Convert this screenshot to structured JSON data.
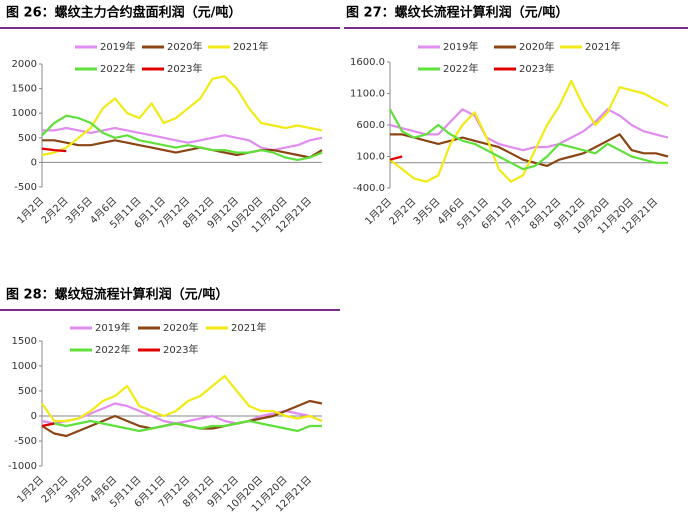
{
  "chart_data": [
    {
      "type": "line",
      "title": "图 26：螺纹主力合约盘面利润（元/吨）",
      "categories": [
        "1月2日",
        null,
        "2月2日",
        null,
        "3月5日",
        null,
        "4月6日",
        null,
        "5月11日",
        null,
        "6月11日",
        null,
        "7月12日",
        null,
        "8月12日",
        null,
        "9月12日",
        null,
        "10月20日",
        null,
        "11月20日",
        null,
        "12月21日",
        null
      ],
      "ylim": [
        -500,
        2000
      ],
      "yticks": [
        -500,
        0,
        500,
        1000,
        1500,
        2000
      ],
      "grid": false,
      "series": [
        {
          "name": "2019年",
          "color": "#e08cf0",
          "values": [
            650,
            650,
            700,
            650,
            600,
            650,
            700,
            650,
            600,
            550,
            500,
            450,
            400,
            450,
            500,
            550,
            500,
            450,
            300,
            250,
            300,
            350,
            450,
            500
          ]
        },
        {
          "name": "2020年",
          "color": "#8b4513",
          "values": [
            450,
            450,
            400,
            350,
            350,
            400,
            450,
            400,
            350,
            300,
            250,
            200,
            250,
            300,
            250,
            200,
            150,
            200,
            250,
            250,
            200,
            150,
            100,
            250
          ]
        },
        {
          "name": "2021年",
          "color": "#f2ea14",
          "values": [
            150,
            200,
            300,
            500,
            700,
            1100,
            1300,
            1000,
            900,
            1200,
            800,
            900,
            1100,
            1300,
            1700,
            1750,
            1500,
            1100,
            800,
            750,
            700,
            750,
            700,
            650
          ]
        },
        {
          "name": "2022年",
          "color": "#5fe03a",
          "values": [
            550,
            800,
            950,
            900,
            800,
            600,
            500,
            550,
            450,
            400,
            350,
            300,
            350,
            300,
            250,
            250,
            200,
            200,
            250,
            200,
            100,
            50,
            100,
            200
          ]
        },
        {
          "name": "2023年",
          "color": "#e00000",
          "values": [
            280,
            250,
            230,
            null,
            null,
            null,
            null,
            null,
            null,
            null,
            null,
            null,
            null,
            null,
            null,
            null,
            null,
            null,
            null,
            null,
            null,
            null,
            null,
            null
          ]
        }
      ]
    },
    {
      "type": "line",
      "title": "图 27：螺纹长流程计算利润（元/吨）",
      "categories": [
        "1月2日",
        null,
        "2月2日",
        null,
        "3月5日",
        null,
        "4月6日",
        null,
        "5月11日",
        null,
        "6月11日",
        null,
        "7月12日",
        null,
        "8月12日",
        null,
        "9月12日",
        null,
        "10月20日",
        null,
        "11月20日",
        null,
        "12月21日",
        null
      ],
      "ylim": [
        -400,
        1600
      ],
      "yticks": [
        {
          "value": -400,
          "label": "-400.0"
        },
        {
          "value": 100,
          "label": "100.0"
        },
        {
          "value": 600,
          "label": "600.0"
        },
        {
          "value": 1100,
          "label": "1100.0"
        },
        {
          "value": 1600,
          "label": "1600.0"
        }
      ],
      "grid": false,
      "series": [
        {
          "name": "2019年",
          "color": "#e08cf0",
          "values": [
            600,
            550,
            500,
            450,
            450,
            650,
            850,
            750,
            400,
            300,
            250,
            200,
            250,
            250,
            300,
            400,
            500,
            650,
            850,
            750,
            600,
            500,
            450,
            400
          ]
        },
        {
          "name": "2020年",
          "color": "#8b4513",
          "values": [
            450,
            450,
            400,
            350,
            300,
            350,
            400,
            350,
            300,
            250,
            150,
            50,
            0,
            -50,
            50,
            100,
            150,
            250,
            350,
            450,
            200,
            150,
            150,
            100
          ]
        },
        {
          "name": "2021年",
          "color": "#f2ea14",
          "values": [
            50,
            -100,
            -250,
            -300,
            -200,
            300,
            600,
            800,
            400,
            -100,
            -300,
            -200,
            200,
            600,
            900,
            1300,
            900,
            600,
            800,
            1200,
            1150,
            1100,
            1000,
            900
          ]
        },
        {
          "name": "2022年",
          "color": "#5fe03a",
          "values": [
            850,
            500,
            400,
            450,
            600,
            450,
            350,
            300,
            200,
            100,
            0,
            -100,
            -50,
            100,
            300,
            250,
            200,
            150,
            300,
            200,
            100,
            50,
            0,
            0
          ]
        },
        {
          "name": "2023年",
          "color": "#e00000",
          "values": [
            50,
            100,
            null,
            null,
            null,
            null,
            null,
            null,
            null,
            null,
            null,
            null,
            null,
            null,
            null,
            null,
            null,
            null,
            null,
            null,
            null,
            null,
            null,
            null
          ]
        }
      ]
    },
    {
      "type": "line",
      "title": "图 28：螺纹短流程计算利润（元/吨）",
      "categories": [
        "1月2日",
        null,
        "2月2日",
        null,
        "3月5日",
        null,
        "4月6日",
        null,
        "5月11日",
        null,
        "6月11日",
        null,
        "7月12日",
        null,
        "8月12日",
        null,
        "9月12日",
        null,
        "10月20日",
        null,
        "11月20日",
        null,
        "12月21日",
        null
      ],
      "ylim": [
        -1000,
        1500
      ],
      "yticks": [
        -1000,
        -500,
        0,
        500,
        1000,
        1500
      ],
      "grid": false,
      "series": [
        {
          "name": "2019年",
          "color": "#e08cf0",
          "values": [
            -100,
            -150,
            -100,
            -50,
            50,
            150,
            250,
            200,
            100,
            0,
            -100,
            -150,
            -100,
            -50,
            0,
            -100,
            -150,
            -100,
            0,
            50,
            100,
            50,
            0,
            -100
          ]
        },
        {
          "name": "2020年",
          "color": "#8b4513",
          "values": [
            -200,
            -350,
            -400,
            -300,
            -200,
            -100,
            0,
            -100,
            -200,
            -250,
            -200,
            -150,
            -200,
            -250,
            -250,
            -200,
            -150,
            -100,
            -50,
            0,
            100,
            200,
            300,
            250
          ]
        },
        {
          "name": "2021年",
          "color": "#f2ea14",
          "values": [
            250,
            -100,
            -100,
            -50,
            100,
            300,
            400,
            600,
            200,
            100,
            0,
            100,
            300,
            400,
            600,
            800,
            500,
            200,
            100,
            100,
            0,
            -50,
            0,
            -100
          ]
        },
        {
          "name": "2022年",
          "color": "#5fe03a",
          "values": [
            -200,
            -150,
            -200,
            -150,
            -100,
            -150,
            -200,
            -250,
            -300,
            -250,
            -200,
            -150,
            -200,
            -250,
            -200,
            -200,
            -150,
            -100,
            -150,
            -200,
            -250,
            -300,
            -200,
            -200
          ]
        },
        {
          "name": "2023年",
          "color": "#e00000",
          "values": [
            -200,
            -150,
            null,
            null,
            null,
            null,
            null,
            null,
            null,
            null,
            null,
            null,
            null,
            null,
            null,
            null,
            null,
            null,
            null,
            null,
            null,
            null,
            null,
            null
          ]
        }
      ]
    }
  ]
}
